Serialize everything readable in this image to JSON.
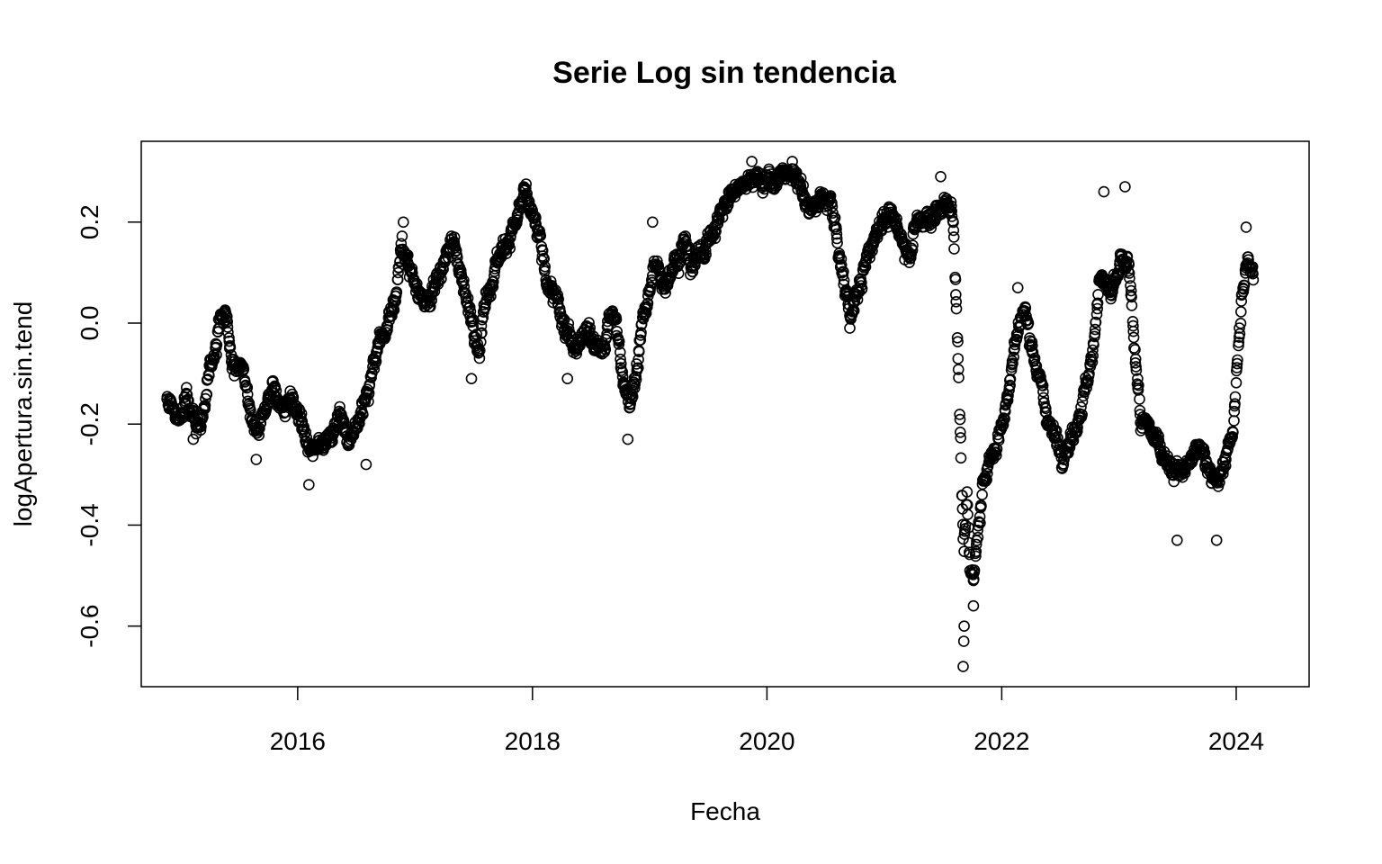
{
  "chart_data": {
    "type": "scatter",
    "title": "Serie Log sin tendencia",
    "xlabel": "Fecha",
    "ylabel": "logApertura.sin.tend",
    "x_ticks": [
      "2016",
      "2018",
      "2020",
      "2022",
      "2024"
    ],
    "y_ticks": [
      "-0.6",
      "-0.4",
      "-0.2",
      "0.0",
      "0.2"
    ],
    "xlim": [
      "2014-09-01",
      "2024-08-15"
    ],
    "ylim": [
      -0.72,
      0.36
    ],
    "grid": false,
    "legend": "none",
    "marker": "open-circle",
    "colors": {
      "points": "#000000",
      "axes": "#000000",
      "background": "#ffffff"
    },
    "anchors": [
      [
        "2014-11-20",
        -0.15
      ],
      [
        "2014-12-20",
        -0.19
      ],
      [
        "2015-01-20",
        -0.14
      ],
      [
        "2015-02-20",
        -0.21
      ],
      [
        "2015-03-15",
        -0.17
      ],
      [
        "2015-04-01",
        -0.1
      ],
      [
        "2015-04-25",
        -0.02
      ],
      [
        "2015-05-10",
        0.02
      ],
      [
        "2015-05-25",
        0.0
      ],
      [
        "2015-06-10",
        -0.09
      ],
      [
        "2015-07-01",
        -0.08
      ],
      [
        "2015-07-20",
        -0.12
      ],
      [
        "2015-08-10",
        -0.19
      ],
      [
        "2015-09-01",
        -0.21
      ],
      [
        "2015-09-20",
        -0.17
      ],
      [
        "2015-10-15",
        -0.13
      ],
      [
        "2015-11-10",
        -0.17
      ],
      [
        "2015-12-10",
        -0.15
      ],
      [
        "2016-01-10",
        -0.19
      ],
      [
        "2016-02-10",
        -0.26
      ],
      [
        "2016-03-10",
        -0.22
      ],
      [
        "2016-04-10",
        -0.24
      ],
      [
        "2016-05-10",
        -0.18
      ],
      [
        "2016-06-10",
        -0.22
      ],
      [
        "2016-07-10",
        -0.2
      ],
      [
        "2016-08-10",
        -0.13
      ],
      [
        "2016-09-10",
        -0.05
      ],
      [
        "2016-10-10",
        0.0
      ],
      [
        "2016-11-01",
        0.06
      ],
      [
        "2016-11-20",
        0.15
      ],
      [
        "2016-12-15",
        0.11
      ],
      [
        "2017-01-15",
        0.06
      ],
      [
        "2017-02-15",
        0.04
      ],
      [
        "2017-03-15",
        0.1
      ],
      [
        "2017-04-15",
        0.15
      ],
      [
        "2017-05-15",
        0.13
      ],
      [
        "2017-06-10",
        0.04
      ],
      [
        "2017-07-01",
        0.0
      ],
      [
        "2017-07-20",
        -0.05
      ],
      [
        "2017-08-10",
        0.06
      ],
      [
        "2017-09-10",
        0.12
      ],
      [
        "2017-10-10",
        0.16
      ],
      [
        "2017-11-10",
        0.2
      ],
      [
        "2017-12-10",
        0.25
      ],
      [
        "2018-01-15",
        0.18
      ],
      [
        "2018-02-15",
        0.09
      ],
      [
        "2018-03-15",
        0.04
      ],
      [
        "2018-04-15",
        -0.02
      ],
      [
        "2018-05-15",
        -0.04
      ],
      [
        "2018-06-15",
        0.0
      ],
      [
        "2018-07-15",
        -0.04
      ],
      [
        "2018-08-15",
        -0.05
      ],
      [
        "2018-09-01",
        0.02
      ],
      [
        "2018-09-20",
        0.0
      ],
      [
        "2018-10-15",
        -0.12
      ],
      [
        "2018-11-01",
        -0.17
      ],
      [
        "2018-11-20",
        -0.1
      ],
      [
        "2018-12-10",
        0.0
      ],
      [
        "2019-01-01",
        0.06
      ],
      [
        "2019-01-20",
        0.12
      ],
      [
        "2019-02-15",
        0.08
      ],
      [
        "2019-03-15",
        0.12
      ],
      [
        "2019-04-15",
        0.16
      ],
      [
        "2019-05-15",
        0.12
      ],
      [
        "2019-06-15",
        0.14
      ],
      [
        "2019-07-15",
        0.18
      ],
      [
        "2019-08-15",
        0.22
      ],
      [
        "2019-09-15",
        0.26
      ],
      [
        "2019-10-15",
        0.28
      ],
      [
        "2019-11-15",
        0.3
      ],
      [
        "2019-12-15",
        0.28
      ],
      [
        "2020-01-15",
        0.28
      ],
      [
        "2020-02-15",
        0.29
      ],
      [
        "2020-03-15",
        0.3
      ],
      [
        "2020-04-15",
        0.26
      ],
      [
        "2020-05-15",
        0.23
      ],
      [
        "2020-06-15",
        0.24
      ],
      [
        "2020-07-15",
        0.25
      ],
      [
        "2020-08-10",
        0.15
      ],
      [
        "2020-09-01",
        0.06
      ],
      [
        "2020-09-20",
        0.02
      ],
      [
        "2020-10-15",
        0.07
      ],
      [
        "2020-11-15",
        0.14
      ],
      [
        "2020-12-15",
        0.2
      ],
      [
        "2021-01-15",
        0.21
      ],
      [
        "2021-02-15",
        0.18
      ],
      [
        "2021-03-15",
        0.14
      ],
      [
        "2021-04-15",
        0.2
      ],
      [
        "2021-05-15",
        0.21
      ],
      [
        "2021-06-15",
        0.22
      ],
      [
        "2021-07-15",
        0.24
      ],
      [
        "2021-08-01",
        0.22
      ],
      [
        "2021-08-10",
        0.1
      ],
      [
        "2021-08-20",
        -0.1
      ],
      [
        "2021-08-28",
        -0.3
      ],
      [
        "2021-09-05",
        -0.45
      ],
      [
        "2021-09-15",
        -0.35
      ],
      [
        "2021-09-25",
        -0.48
      ],
      [
        "2021-10-05",
        -0.52
      ],
      [
        "2021-10-20",
        -0.4
      ],
      [
        "2021-11-10",
        -0.3
      ],
      [
        "2021-12-10",
        -0.25
      ],
      [
        "2022-01-10",
        -0.18
      ],
      [
        "2022-02-10",
        -0.05
      ],
      [
        "2022-03-10",
        0.03
      ],
      [
        "2022-04-10",
        -0.05
      ],
      [
        "2022-05-10",
        -0.15
      ],
      [
        "2022-06-10",
        -0.22
      ],
      [
        "2022-07-10",
        -0.25
      ],
      [
        "2022-08-10",
        -0.22
      ],
      [
        "2022-09-10",
        -0.15
      ],
      [
        "2022-10-10",
        -0.08
      ],
      [
        "2022-11-01",
        0.1
      ],
      [
        "2022-11-20",
        0.08
      ],
      [
        "2022-12-10",
        0.05
      ],
      [
        "2023-01-10",
        0.12
      ],
      [
        "2023-02-01",
        0.1
      ],
      [
        "2023-02-20",
        -0.05
      ],
      [
        "2023-03-10",
        -0.2
      ],
      [
        "2023-04-10",
        -0.22
      ],
      [
        "2023-05-10",
        -0.24
      ],
      [
        "2023-06-10",
        -0.28
      ],
      [
        "2023-07-10",
        -0.3
      ],
      [
        "2023-08-10",
        -0.28
      ],
      [
        "2023-09-10",
        -0.25
      ],
      [
        "2023-10-10",
        -0.28
      ],
      [
        "2023-11-05",
        -0.33
      ],
      [
        "2023-12-01",
        -0.26
      ],
      [
        "2023-12-20",
        -0.22
      ],
      [
        "2024-01-05",
        -0.08
      ],
      [
        "2024-01-20",
        0.05
      ],
      [
        "2024-02-05",
        0.13
      ],
      [
        "2024-02-25",
        0.1
      ]
    ],
    "spikes": [
      [
        "2015-02-10",
        -0.23
      ],
      [
        "2015-08-25",
        -0.27
      ],
      [
        "2016-02-05",
        -0.32
      ],
      [
        "2016-08-01",
        -0.28
      ],
      [
        "2016-11-25",
        0.2
      ],
      [
        "2017-06-25",
        -0.11
      ],
      [
        "2017-12-05",
        0.27
      ],
      [
        "2018-04-20",
        -0.11
      ],
      [
        "2018-10-25",
        -0.23
      ],
      [
        "2019-01-10",
        0.2
      ],
      [
        "2019-11-15",
        0.32
      ],
      [
        "2020-03-20",
        0.32
      ],
      [
        "2020-09-15",
        -0.01
      ],
      [
        "2021-06-25",
        0.29
      ],
      [
        "2021-09-03",
        -0.68
      ],
      [
        "2021-09-05",
        -0.63
      ],
      [
        "2021-09-06",
        -0.6
      ],
      [
        "2021-10-05",
        -0.56
      ],
      [
        "2022-02-20",
        0.07
      ],
      [
        "2022-11-15",
        0.26
      ],
      [
        "2023-01-20",
        0.27
      ],
      [
        "2023-07-01",
        -0.43
      ],
      [
        "2023-11-01",
        -0.43
      ],
      [
        "2024-02-01",
        0.19
      ]
    ]
  }
}
